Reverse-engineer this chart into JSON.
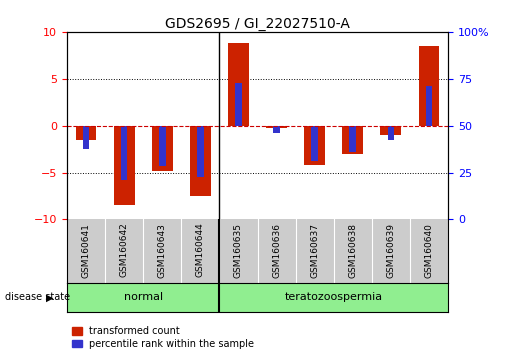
{
  "title": "GDS2695 / GI_22027510-A",
  "samples": [
    "GSM160641",
    "GSM160642",
    "GSM160643",
    "GSM160644",
    "GSM160635",
    "GSM160636",
    "GSM160637",
    "GSM160638",
    "GSM160639",
    "GSM160640"
  ],
  "transformed_counts": [
    -1.5,
    -8.5,
    -4.8,
    -7.5,
    8.8,
    -0.3,
    -4.2,
    -3.0,
    -1.0,
    8.5
  ],
  "percentile_ranks": [
    -2.5,
    -5.8,
    -4.3,
    -5.5,
    4.5,
    -0.8,
    -3.8,
    -2.8,
    -1.5,
    4.2
  ],
  "group_boundary": 4,
  "group_labels": [
    "normal",
    "teratozoospermia"
  ],
  "group_color": "#90EE90",
  "ylim": [
    -10,
    10
  ],
  "yticks_left": [
    -10,
    -5,
    0,
    5,
    10
  ],
  "right_tick_positions": [
    -10,
    -5,
    0,
    5,
    10
  ],
  "right_tick_labels": [
    "0",
    "25",
    "50",
    "75",
    "100%"
  ],
  "bar_color": "#CC2200",
  "percentile_color": "#3333CC",
  "bar_width": 0.55,
  "background_color": "#ffffff",
  "label_area_color": "#CCCCCC",
  "grid_color": "#000000",
  "zero_line_color": "#CC0000",
  "label_fontsize": 8,
  "title_fontsize": 10,
  "sample_fontsize": 6.5
}
